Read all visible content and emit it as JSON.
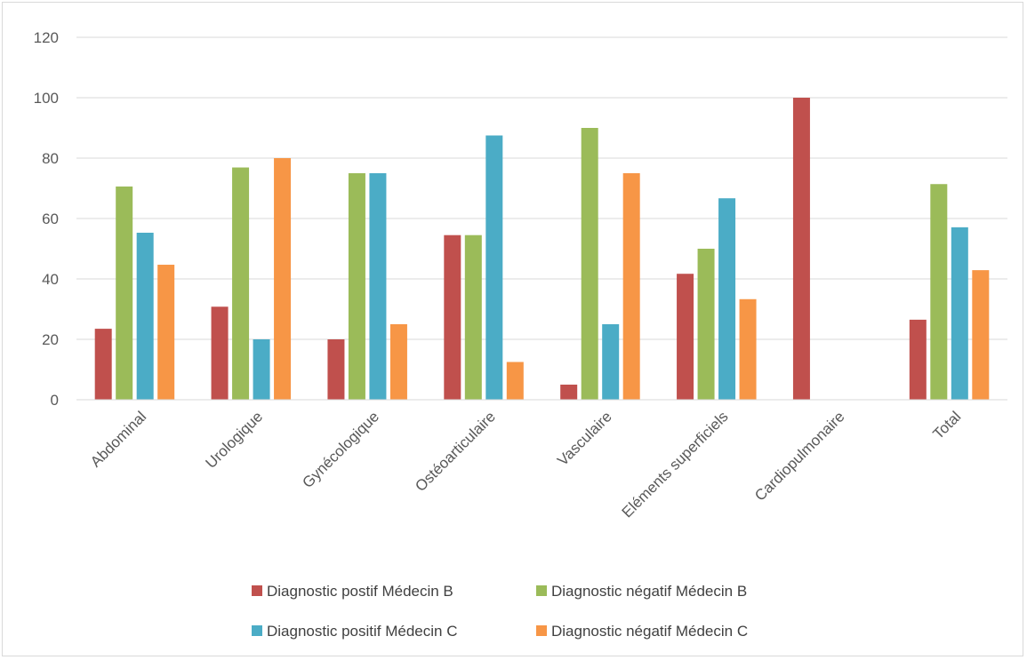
{
  "chart_data": {
    "type": "bar",
    "title": "",
    "xlabel": "",
    "ylabel": "",
    "ylim": [
      0,
      120
    ],
    "yticks": [
      0,
      20,
      40,
      60,
      80,
      100,
      120
    ],
    "grid": true,
    "legend_position": "bottom",
    "categories": [
      "Abdominal",
      "Urologique",
      "Gynécologique",
      "Ostéoarticulaire",
      "Vasculaire",
      "Eléments superficiels",
      "Cardiopulmonaire",
      "Total"
    ],
    "series": [
      {
        "name": "Diagnostic postif Médecin B",
        "color": "#C0504D",
        "values": [
          23.5,
          30.8,
          20,
          54.5,
          5,
          41.7,
          100,
          26.5
        ]
      },
      {
        "name": "Diagnostic négatif Médecin B",
        "color": "#9BBB59",
        "values": [
          70.6,
          76.9,
          75,
          54.5,
          90,
          50,
          0,
          71.4
        ]
      },
      {
        "name": "Diagnostic positif Médecin C",
        "color": "#4BACC6",
        "values": [
          55.3,
          20,
          75,
          87.5,
          25,
          66.7,
          0,
          57.1
        ]
      },
      {
        "name": "Diagnostic négatif Médecin C",
        "color": "#F79646",
        "values": [
          44.7,
          80,
          25,
          12.5,
          75,
          33.3,
          0,
          42.9
        ]
      }
    ]
  }
}
